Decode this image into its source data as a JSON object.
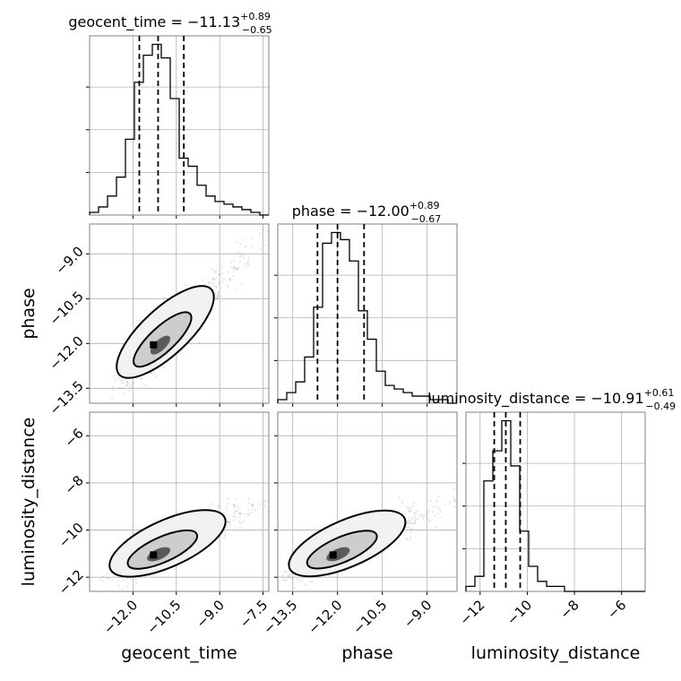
{
  "chart_data": {
    "type": "corner",
    "parameters": [
      {
        "name": "geocent_time",
        "title_prefix": "geocent_time = ",
        "median": "−11.13",
        "err_plus": "+0.89",
        "err_minus": "−0.65",
        "quantiles": [
          -11.78,
          -11.13,
          -10.24
        ],
        "range": [
          -13.5,
          -7.3
        ],
        "ticks": [
          -12.0,
          -10.5,
          -9.0,
          -7.5
        ],
        "tick_labels": [
          "−12.0",
          "−10.5",
          "−9.0",
          "−7.5"
        ],
        "hist_bins": [
          -13.5,
          -13.19,
          -12.88,
          -12.57,
          -12.26,
          -11.95,
          -11.64,
          -11.33,
          -11.02,
          -10.71,
          -10.4,
          -10.09,
          -9.78,
          -9.47,
          -9.16,
          -8.85,
          -8.54,
          -8.23,
          -7.92,
          -7.61,
          -7.3
        ],
        "hist_counts": [
          1,
          3,
          7,
          14,
          28,
          49,
          59,
          63,
          58,
          43,
          21,
          18,
          11,
          7,
          5,
          4,
          3,
          2,
          1,
          0
        ]
      },
      {
        "name": "phase",
        "title_prefix": "phase = ",
        "median": "−12.00",
        "err_plus": "+0.89",
        "err_minus": "−0.67",
        "quantiles": [
          -12.67,
          -12.0,
          -11.11
        ],
        "range": [
          -14.0,
          -8.0
        ],
        "ticks": [
          -13.5,
          -12.0,
          -10.5,
          -9.0
        ],
        "tick_labels": [
          "−13.5",
          "−12.0",
          "−10.5",
          "−9.0"
        ],
        "hist_bins": [
          -14.0,
          -13.7,
          -13.4,
          -13.1,
          -12.8,
          -12.5,
          -12.2,
          -11.9,
          -11.6,
          -11.3,
          -11.0,
          -10.7,
          -10.4,
          -10.1,
          -9.8,
          -9.5,
          -9.2,
          -8.9,
          -8.6,
          -8.3,
          -8.0
        ],
        "hist_counts": [
          1,
          3,
          6,
          13,
          27,
          45,
          48,
          46,
          40,
          26,
          18,
          9,
          5,
          4,
          3,
          2,
          2,
          1,
          1,
          0
        ]
      },
      {
        "name": "luminosity_distance",
        "title_prefix": "luminosity_distance = ",
        "median": "−10.91",
        "err_plus": "+0.61",
        "err_minus": "−0.49",
        "quantiles": [
          -11.4,
          -10.91,
          -10.3
        ],
        "range": [
          -12.6,
          -5.0
        ],
        "ticks": [
          -12,
          -10,
          -8,
          -6
        ],
        "tick_labels": [
          "−12",
          "−10",
          "−8",
          "−6"
        ],
        "hist_bins": [
          -12.6,
          -12.22,
          -11.84,
          -11.46,
          -11.08,
          -10.7,
          -10.32,
          -9.94,
          -9.56,
          -9.18,
          -8.8,
          -8.42,
          -8.04,
          -7.66,
          -7.28,
          -6.9,
          -6.52,
          -6.14,
          -5.76,
          -5.38,
          -5.0
        ],
        "hist_counts": [
          1,
          3,
          22,
          28,
          34,
          25,
          12,
          5,
          2,
          1,
          1,
          0,
          0,
          0,
          0,
          0,
          0,
          0,
          0,
          0
        ]
      }
    ],
    "pair_ranges": {
      "phase_vs_geocent_time": {
        "x_range": [
          -13.5,
          -7.3
        ],
        "y_range": [
          -14.0,
          -8.0
        ],
        "yticks": [
          -13.5,
          -12.0,
          -10.5,
          -9.0
        ],
        "ytick_labels": [
          "−13.5",
          "−12.0",
          "−10.5",
          "−9.0"
        ]
      },
      "luminosity_distance_vs_geocent_time": {
        "x_range": [
          -13.5,
          -7.3
        ],
        "y_range": [
          -12.6,
          -5.0
        ],
        "yticks": [
          -12,
          -10,
          -8,
          -6
        ],
        "ytick_labels": [
          "−12",
          "−10",
          "−8",
          "−6"
        ]
      },
      "luminosity_distance_vs_phase": {
        "x_range": [
          -14.0,
          -8.0
        ],
        "y_range": [
          -12.6,
          -5.0
        ]
      }
    },
    "grid": true,
    "contour_levels": 2
  },
  "colors": {
    "line": "#000000",
    "grid": "#b0b0b0",
    "spine": "#808080",
    "scatter": "#808080"
  }
}
